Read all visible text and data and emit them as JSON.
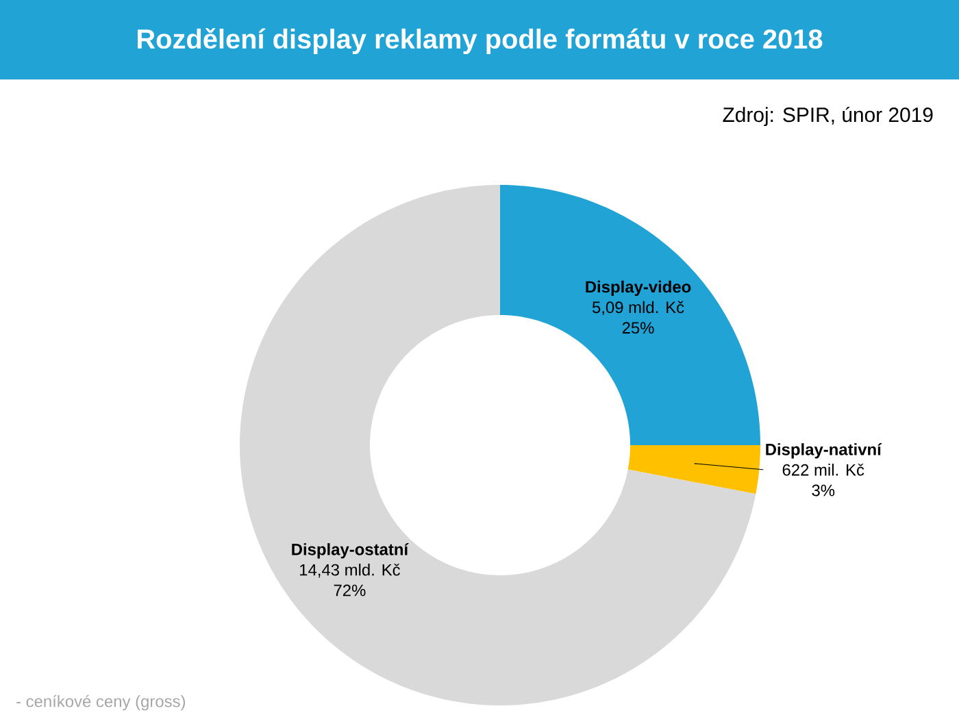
{
  "chart_data": {
    "type": "donut",
    "title": "Rozdělení display reklamy podle formátu v roce 2018",
    "subtitle": "Zdroj: SPIR, únor 2019",
    "categories": [
      "Display-video",
      "Display-nativní",
      "Display-ostatní"
    ],
    "values": [
      25,
      3,
      72
    ],
    "value_labels": [
      "25%",
      "3%",
      "72%"
    ],
    "colors": [
      "#21a3d6",
      "#ffc000",
      "#d9d9d9"
    ],
    "annotations": [
      {
        "text": "5,09 mld. Kč",
        "x": "Display-video"
      },
      {
        "text": "622 mil. Kč",
        "x": "Display-nativní"
      },
      {
        "text": "14,43 mld. Kč",
        "x": "Display-ostatní"
      },
      "- ceníkové ceny (gross)"
    ]
  }
}
